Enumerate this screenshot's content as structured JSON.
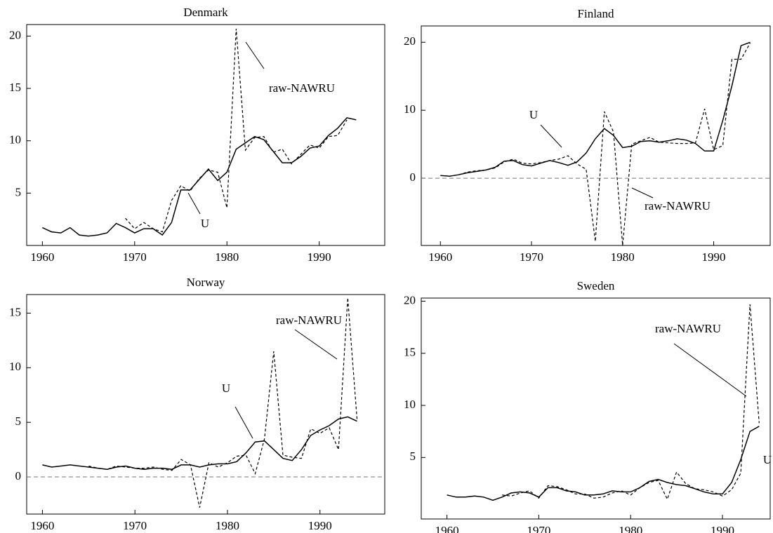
{
  "chart_data": [
    {
      "type": "line",
      "title": "Denmark",
      "x": [
        1960,
        1961,
        1962,
        1963,
        1964,
        1965,
        1966,
        1967,
        1968,
        1969,
        1970,
        1971,
        1972,
        1973,
        1974,
        1975,
        1976,
        1977,
        1978,
        1979,
        1980,
        1981,
        1982,
        1983,
        1984,
        1985,
        1986,
        1987,
        1988,
        1989,
        1990,
        1991,
        1992,
        1993,
        1994
      ],
      "series": [
        {
          "name": "U",
          "color": "#000000",
          "line_style": "solid",
          "values": [
            1.7,
            1.3,
            1.2,
            1.7,
            1.0,
            0.9,
            1.0,
            1.2,
            2.1,
            1.7,
            1.2,
            1.6,
            1.6,
            1.0,
            2.2,
            5.3,
            5.3,
            6.3,
            7.3,
            6.2,
            7.0,
            9.2,
            9.8,
            10.4,
            10.1,
            9.0,
            7.9,
            7.9,
            8.5,
            9.3,
            9.5,
            10.5,
            11.2,
            12.2,
            12.0
          ]
        },
        {
          "name": "raw-NAWRU",
          "color": "#000000",
          "line_style": "dashed",
          "values": [
            null,
            null,
            null,
            null,
            null,
            null,
            null,
            null,
            null,
            2.6,
            1.6,
            2.2,
            1.6,
            1.3,
            4.3,
            5.7,
            5.2,
            6.4,
            7.2,
            7.0,
            3.6,
            20.7,
            9.1,
            10.3,
            10.4,
            8.9,
            9.2,
            7.8,
            8.7,
            9.6,
            9.3,
            10.4,
            10.5,
            12.0,
            null
          ]
        }
      ],
      "xlim": [
        1958.3,
        1997.1
      ],
      "xticks": [
        1960,
        1970,
        1980,
        1990
      ],
      "ylim": [
        0,
        21.1
      ],
      "yticks": [
        5,
        10,
        15,
        20
      ],
      "zero_line": false,
      "grid": false
    },
    {
      "type": "line",
      "title": "Finland",
      "x": [
        1960,
        1961,
        1962,
        1963,
        1964,
        1965,
        1966,
        1967,
        1968,
        1969,
        1970,
        1971,
        1972,
        1973,
        1974,
        1975,
        1976,
        1977,
        1978,
        1979,
        1980,
        1981,
        1982,
        1983,
        1984,
        1985,
        1986,
        1987,
        1988,
        1989,
        1990,
        1991,
        1992,
        1993,
        1994
      ],
      "series": [
        {
          "name": "U",
          "color": "#000000",
          "line_style": "solid",
          "values": [
            0.4,
            0.3,
            0.5,
            0.8,
            1.0,
            1.2,
            1.6,
            2.5,
            2.6,
            2.0,
            1.8,
            2.2,
            2.6,
            2.3,
            1.9,
            2.4,
            3.7,
            5.8,
            7.3,
            6.3,
            4.5,
            4.7,
            5.4,
            5.5,
            5.3,
            5.5,
            5.8,
            5.6,
            5.1,
            4.0,
            4.0,
            8.5,
            13.6,
            19.5,
            20.0
          ]
        },
        {
          "name": "raw-NAWRU",
          "color": "#000000",
          "line_style": "dashed",
          "values": [
            null,
            null,
            0.5,
            0.9,
            1.1,
            1.2,
            1.5,
            2.4,
            2.8,
            2.2,
            2.1,
            2.3,
            2.6,
            2.8,
            3.3,
            2.1,
            1.3,
            -9.3,
            9.8,
            6.8,
            -9.9,
            5.0,
            5.5,
            6.0,
            5.3,
            5.2,
            5.1,
            5.1,
            5.2,
            10.2,
            4.2,
            4.8,
            17.5,
            17.5,
            19.9
          ]
        }
      ],
      "xlim": [
        1957.9,
        1996.2
      ],
      "xticks": [
        1960,
        1970,
        1980,
        1990
      ],
      "ylim": [
        -9.9,
        22.4
      ],
      "yticks": [
        0,
        10,
        20
      ],
      "zero_line": true,
      "grid": false
    },
    {
      "type": "line",
      "title": "Norway",
      "x": [
        1960,
        1961,
        1962,
        1963,
        1964,
        1965,
        1966,
        1967,
        1968,
        1969,
        1970,
        1971,
        1972,
        1973,
        1974,
        1975,
        1976,
        1977,
        1978,
        1979,
        1980,
        1981,
        1982,
        1983,
        1984,
        1985,
        1986,
        1987,
        1988,
        1989,
        1990,
        1991,
        1992,
        1993,
        1994
      ],
      "series": [
        {
          "name": "U",
          "color": "#000000",
          "line_style": "solid",
          "values": [
            1.1,
            0.9,
            1.0,
            1.1,
            1.0,
            0.9,
            0.8,
            0.7,
            0.9,
            1.0,
            0.8,
            0.7,
            0.8,
            0.8,
            0.7,
            1.1,
            1.1,
            0.9,
            1.1,
            1.2,
            1.2,
            1.4,
            2.2,
            3.2,
            3.3,
            2.5,
            1.7,
            1.5,
            2.5,
            3.8,
            4.3,
            4.7,
            5.3,
            5.5,
            5.1
          ]
        },
        {
          "name": "raw-NAWRU",
          "color": "#000000",
          "line_style": "dashed",
          "values": [
            null,
            null,
            null,
            null,
            null,
            1.0,
            0.8,
            0.7,
            1.0,
            0.9,
            0.8,
            0.8,
            0.9,
            0.7,
            0.6,
            1.6,
            1.1,
            -2.8,
            1.3,
            0.9,
            1.3,
            1.9,
            2.0,
            0.3,
            3.5,
            11.5,
            2.0,
            1.8,
            1.7,
            4.4,
            4.0,
            4.5,
            2.5,
            16.4,
            5.3
          ]
        }
      ],
      "xlim": [
        1958.3,
        1997.0
      ],
      "xticks": [
        1960,
        1970,
        1980,
        1990
      ],
      "ylim": [
        -3.4,
        16.7
      ],
      "yticks": [
        0,
        5,
        10,
        15
      ],
      "zero_line": true,
      "grid": false
    },
    {
      "type": "line",
      "title": "Sweden",
      "x": [
        1960,
        1961,
        1962,
        1963,
        1964,
        1965,
        1966,
        1967,
        1968,
        1969,
        1970,
        1971,
        1972,
        1973,
        1974,
        1975,
        1976,
        1977,
        1978,
        1979,
        1980,
        1981,
        1982,
        1983,
        1984,
        1985,
        1986,
        1987,
        1988,
        1989,
        1990,
        1991,
        1992,
        1993,
        1994
      ],
      "series": [
        {
          "name": "U",
          "color": "#000000",
          "line_style": "solid",
          "values": [
            1.4,
            1.2,
            1.2,
            1.3,
            1.2,
            0.9,
            1.2,
            1.6,
            1.7,
            1.6,
            1.2,
            2.1,
            2.1,
            1.8,
            1.7,
            1.4,
            1.4,
            1.5,
            1.8,
            1.7,
            1.7,
            2.1,
            2.7,
            2.9,
            2.6,
            2.4,
            2.3,
            2.0,
            1.7,
            1.5,
            1.5,
            2.6,
            4.8,
            7.5,
            8.0
          ]
        },
        {
          "name": "raw-NAWRU",
          "color": "#000000",
          "line_style": "dashed",
          "values": [
            null,
            null,
            null,
            null,
            null,
            null,
            1.4,
            1.3,
            1.6,
            1.8,
            1.1,
            2.3,
            2.2,
            1.9,
            1.5,
            1.5,
            1.1,
            1.2,
            1.6,
            1.8,
            1.4,
            2.1,
            2.6,
            2.8,
            1.0,
            3.6,
            2.5,
            2.0,
            1.9,
            1.7,
            1.3,
            1.9,
            3.5,
            19.7,
            8.3
          ]
        }
      ],
      "xlim": [
        1957.2,
        1995.2
      ],
      "xticks": [
        1960,
        1970,
        1980,
        1990
      ],
      "ylim": [
        -0.9,
        20.3
      ],
      "yticks": [
        5,
        10,
        15,
        20
      ],
      "zero_line": false,
      "grid": false
    }
  ]
}
